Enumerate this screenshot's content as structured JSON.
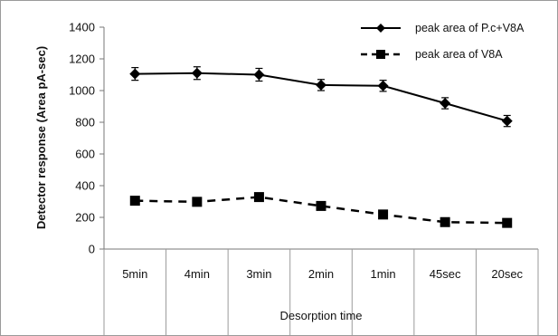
{
  "chart_data": {
    "type": "line",
    "title": "",
    "xlabel": "Desorption time",
    "ylabel": "Detector response (Area pA-sec)",
    "categories": [
      "5min",
      "4min",
      "3min",
      "2min",
      "1min",
      "45sec",
      "20sec"
    ],
    "ylim": [
      0,
      1400
    ],
    "yticks": [
      0,
      200,
      400,
      600,
      800,
      1000,
      1200,
      1400
    ],
    "grid": false,
    "legend_position": "top-right",
    "series": [
      {
        "name": "peak area of P.c+V8A",
        "values": [
          1105,
          1110,
          1100,
          1035,
          1030,
          920,
          808
        ],
        "errors": [
          40,
          40,
          40,
          35,
          35,
          35,
          35
        ],
        "line_style": "solid",
        "marker": "diamond",
        "color": "#000000"
      },
      {
        "name": "peak area of V8A",
        "values": [
          305,
          298,
          328,
          272,
          218,
          170,
          165
        ],
        "line_style": "dashed",
        "marker": "square",
        "color": "#000000"
      }
    ]
  }
}
